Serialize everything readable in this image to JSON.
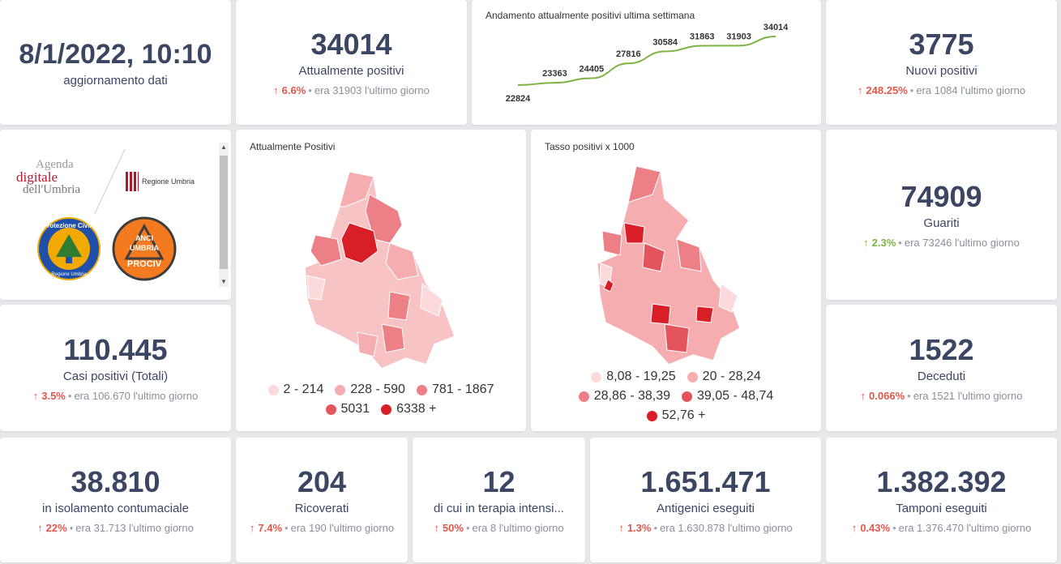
{
  "update": {
    "datetime": "8/1/2022, 10:10",
    "label": "aggiornamento dati"
  },
  "attualmente_positivi": {
    "value": "34014",
    "label": "Attualmente positivi",
    "pct": "6.6%",
    "prev": "era 31903",
    "suffix": "l'ultimo giorno"
  },
  "trend": {
    "title": "Andamento attualmente positivi ultima settimana",
    "labels": [
      "22824",
      "23363",
      "24405",
      "27816",
      "30584",
      "31863",
      "31903",
      "34014"
    ]
  },
  "chart_data": {
    "type": "line",
    "title": "Andamento attualmente positivi ultima settimana",
    "values": [
      22824,
      23363,
      24405,
      27816,
      30584,
      31863,
      31903,
      34014
    ],
    "line_color": "#7cb342"
  },
  "nuovi_positivi": {
    "value": "3775",
    "label": "Nuovi positivi",
    "pct": "248.25%",
    "prev": "era 1084",
    "suffix": "l'ultimo giorno"
  },
  "logos": {
    "agenda_line1": "Agenda",
    "agenda_line2": "digitale",
    "agenda_line3": "dell'Umbria",
    "regione": "Regione Umbria",
    "protezione": "Protezione Civile",
    "protezione_sub": "Regione Umbria",
    "anci_1": "ANCI",
    "anci_2": "UMBRIA",
    "anci_3": "PROCIV"
  },
  "map1": {
    "title": "Attualmente Positivi",
    "legend": [
      {
        "label": "2 - 214",
        "color": "#fcd9da"
      },
      {
        "label": "228 - 590",
        "color": "#f5adb0"
      },
      {
        "label": "781 - 1867",
        "color": "#ec8086"
      },
      {
        "label": "5031",
        "color": "#e3545c"
      },
      {
        "label": "6338 +",
        "color": "#d81e26"
      }
    ]
  },
  "map2": {
    "title": "Tasso positivi x 1000",
    "legend": [
      {
        "label": "8,08 - 19,25",
        "color": "#fcd9da"
      },
      {
        "label": "20 - 28,24",
        "color": "#f5adb0"
      },
      {
        "label": "28,86 - 38,39",
        "color": "#ec8086"
      },
      {
        "label": "39,05 - 48,74",
        "color": "#e3545c"
      },
      {
        "label": "52,76 +",
        "color": "#d81e26"
      }
    ]
  },
  "guariti": {
    "value": "74909",
    "label": "Guariti",
    "pct": "2.3%",
    "prev": "era 73246",
    "suffix": "l'ultimo giorno"
  },
  "casi_totali": {
    "value": "110.445",
    "label": "Casi positivi (Totali)",
    "pct": "3.5%",
    "prev": "era 106.670",
    "suffix": "l'ultimo giorno"
  },
  "deceduti": {
    "value": "1522",
    "label": "Deceduti",
    "pct": "0.066%",
    "prev": "era 1521",
    "suffix": "l'ultimo giorno"
  },
  "isolamento": {
    "value": "38.810",
    "label": "in isolamento contumaciale",
    "pct": "22%",
    "prev": "era 31.713",
    "suffix": "l'ultimo giorno"
  },
  "ricoverati": {
    "value": "204",
    "label": "Ricoverati",
    "pct": "7.4%",
    "prev": "era 190",
    "suffix": "l'ultimo giorno"
  },
  "terapia": {
    "value": "12",
    "label": "di cui in terapia intensi...",
    "pct": "50%",
    "prev": "era 8",
    "suffix": "l'ultimo giorno"
  },
  "antigenici": {
    "value": "1.651.471",
    "label": "Antigenici eseguiti",
    "pct": "1.3%",
    "prev": "era 1.630.878",
    "suffix": "l'ultimo giorno"
  },
  "tamponi": {
    "value": "1.382.392",
    "label": "Tamponi eseguiti",
    "pct": "0.43%",
    "prev": "era 1.376.470",
    "suffix": "l'ultimo giorno"
  },
  "icons": {
    "up_arrow": "arrow-up-icon",
    "red": "#e2574c",
    "green": "#7cb342"
  }
}
